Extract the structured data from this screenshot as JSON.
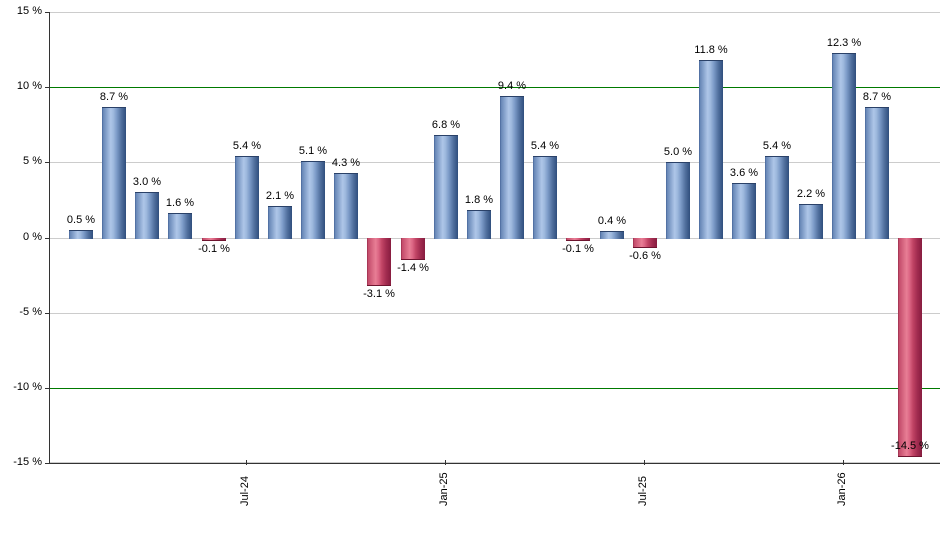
{
  "chart_data": {
    "type": "bar",
    "title": "",
    "xlabel": "",
    "ylabel": "",
    "ylim": [
      -15,
      15
    ],
    "grid": true,
    "legend": "none",
    "y_ticks": [
      {
        "value": 15,
        "label": "15 %"
      },
      {
        "value": 10,
        "label": "10 %"
      },
      {
        "value": 5,
        "label": "5 %"
      },
      {
        "value": 0,
        "label": "0 %"
      },
      {
        "value": -5,
        "label": "-5 %"
      },
      {
        "value": -10,
        "label": "-10 %"
      },
      {
        "value": -15,
        "label": "-15 %"
      }
    ],
    "x_ticks": [
      {
        "bar_index": 5,
        "label": "Jul-24"
      },
      {
        "bar_index": 11,
        "label": "Jan-25"
      },
      {
        "bar_index": 17,
        "label": "Jul-25"
      },
      {
        "bar_index": 23,
        "label": "Jan-26"
      }
    ],
    "bars": [
      {
        "value": 0.5,
        "label": "0.5 %"
      },
      {
        "value": 8.7,
        "label": "8.7 %"
      },
      {
        "value": 3.0,
        "label": "3.0 %"
      },
      {
        "value": 1.6,
        "label": "1.6 %"
      },
      {
        "value": -0.1,
        "label": "-0.1 %"
      },
      {
        "value": 5.4,
        "label": "5.4 %"
      },
      {
        "value": 2.1,
        "label": "2.1 %"
      },
      {
        "value": 5.1,
        "label": "5.1 %"
      },
      {
        "value": 4.3,
        "label": "4.3 %"
      },
      {
        "value": -3.1,
        "label": "-3.1 %"
      },
      {
        "value": -1.4,
        "label": "-1.4 %"
      },
      {
        "value": 6.8,
        "label": "6.8 %"
      },
      {
        "value": 1.8,
        "label": "1.8 %"
      },
      {
        "value": 9.4,
        "label": "9.4 %"
      },
      {
        "value": 5.4,
        "label": "5.4 %"
      },
      {
        "value": -0.1,
        "label": "-0.1 %"
      },
      {
        "value": 0.4,
        "label": "0.4 %"
      },
      {
        "value": -0.6,
        "label": "-0.6 %"
      },
      {
        "value": 5.0,
        "label": "5.0 %"
      },
      {
        "value": 11.8,
        "label": "11.8 %"
      },
      {
        "value": 3.6,
        "label": "3.6 %"
      },
      {
        "value": 5.4,
        "label": "5.4 %"
      },
      {
        "value": 2.2,
        "label": "2.2 %"
      },
      {
        "value": 12.3,
        "label": "12.3 %"
      },
      {
        "value": 8.7,
        "label": "8.7 %"
      },
      {
        "value": -14.5,
        "label": "-14.5 %"
      }
    ],
    "threshold_lines": [
      {
        "value": 10,
        "color": "#007a00"
      },
      {
        "value": -10,
        "color": "#007a00"
      }
    ],
    "colors": {
      "positive_bar_main": "#7b9ac7",
      "positive_bar_dark": "#2f4e7d",
      "positive_bar_light": "#aec6e8",
      "negative_bar_main": "#c14465",
      "negative_bar_dark": "#871c3f",
      "negative_bar_light": "#e87e95",
      "gridline": "#cccccc",
      "threshold": "#007a00",
      "axis": "#333333",
      "label_text": "#000000",
      "background": "#ffffff"
    }
  }
}
